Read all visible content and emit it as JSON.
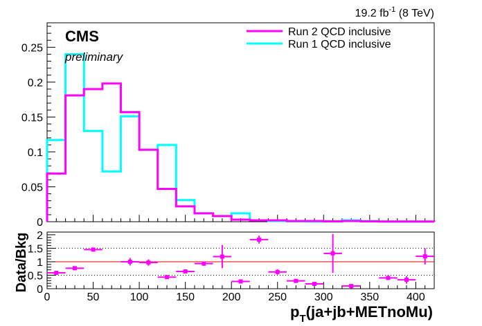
{
  "annotations": {
    "experiment": "CMS",
    "status": "preliminary",
    "lumi_value": "19.2 fb",
    "lumi_exp": "-1",
    "lumi_energy": " (8 TeV)"
  },
  "chart_data": [
    {
      "type": "line",
      "plot": "histogram",
      "xlim": [
        0,
        420
      ],
      "ylim": [
        0,
        0.285
      ],
      "bin_edges": [
        0,
        20,
        40,
        60,
        80,
        100,
        120,
        140,
        160,
        180,
        200,
        220,
        240,
        260,
        280,
        300,
        320,
        340,
        360,
        380,
        400,
        420
      ],
      "y_ticks": [
        "0",
        "0.05",
        "0.1",
        "0.15",
        "0.2",
        "0.25"
      ],
      "y_tick_values": [
        0,
        0.05,
        0.1,
        0.15,
        0.2,
        0.25
      ],
      "series": [
        {
          "name": "Run 2 QCD inclusive",
          "color": "#ff00ff",
          "values": [
            0.069,
            0.181,
            0.19,
            0.198,
            0.157,
            0.103,
            0.047,
            0.022,
            0.012,
            0.008,
            0.003,
            0.002,
            0.002,
            0.001,
            0.001,
            0.0005,
            0.001,
            0.0005,
            0.0003,
            0.0003,
            0.0002
          ]
        },
        {
          "name": "Run 1 QCD inclusive",
          "color": "#00ffff",
          "values": [
            0.117,
            0.24,
            0.13,
            0.072,
            0.151,
            0.103,
            0.11,
            0.031,
            0.012,
            0.008,
            0.012,
            0.002,
            0.001,
            0.0005,
            0.0003,
            0.0003,
            0.002,
            0.001,
            0.0003,
            0.0002,
            0.0001
          ]
        }
      ],
      "legend_position": "top-right",
      "grid": false
    },
    {
      "type": "scatter",
      "plot": "ratio with error bars",
      "ylabel": "Data/Bkg",
      "xlabel_main": "p",
      "xlabel_sub": "T",
      "xlabel_rest": "(ja+jb+METnoMu)",
      "xlim": [
        0,
        420
      ],
      "ylim": [
        0,
        2.1
      ],
      "x_ticks": [
        "0",
        "50",
        "100",
        "150",
        "200",
        "250",
        "300",
        "350",
        "400"
      ],
      "x_tick_values": [
        0,
        50,
        100,
        150,
        200,
        250,
        300,
        350,
        400
      ],
      "y_ticks": [
        "0",
        "0.5",
        "1",
        "1.5",
        "2"
      ],
      "y_tick_values": [
        0,
        0.5,
        1,
        1.5,
        2
      ],
      "reference_line": 1,
      "reference_color": "#dd0000",
      "dotted_lines": [
        0.5,
        1.5
      ],
      "marker_color": "#ff00ff",
      "points": [
        {
          "x": 10,
          "y": 0.59,
          "xerr": 10,
          "yerr": 0.04
        },
        {
          "x": 30,
          "y": 0.76,
          "xerr": 10,
          "yerr": 0.04
        },
        {
          "x": 50,
          "y": 1.45,
          "xerr": 10,
          "yerr": 0.05
        },
        {
          "x": 90,
          "y": 1.0,
          "xerr": 10,
          "yerr": 0.14
        },
        {
          "x": 110,
          "y": 0.97,
          "xerr": 10,
          "yerr": 0.12
        },
        {
          "x": 130,
          "y": 0.43,
          "xerr": 10,
          "yerr": 0.03
        },
        {
          "x": 150,
          "y": 0.64,
          "xerr": 10,
          "yerr": 0.06
        },
        {
          "x": 170,
          "y": 0.93,
          "xerr": 10,
          "yerr": 0.08
        },
        {
          "x": 190,
          "y": 1.19,
          "xerr": 10,
          "yerr": 0.43
        },
        {
          "x": 210,
          "y": 0.27,
          "xerr": 10,
          "yerr": 0.03
        },
        {
          "x": 230,
          "y": 1.82,
          "xerr": 10,
          "yerr": 0.15
        },
        {
          "x": 250,
          "y": 0.62,
          "xerr": 10,
          "yerr": 0.1
        },
        {
          "x": 270,
          "y": 0.29,
          "xerr": 10,
          "yerr": 0.05
        },
        {
          "x": 290,
          "y": 0.18,
          "xerr": 10,
          "yerr": 0.05
        },
        {
          "x": 310,
          "y": 1.31,
          "xerr": 10,
          "yerr": 0.72
        },
        {
          "x": 330,
          "y": 0.1,
          "xerr": 10,
          "yerr": 0.02
        },
        {
          "x": 370,
          "y": 0.4,
          "xerr": 10,
          "yerr": 0.08
        },
        {
          "x": 390,
          "y": 0.33,
          "xerr": 10,
          "yerr": 0.14
        },
        {
          "x": 410,
          "y": 1.2,
          "xerr": 10,
          "yerr": 0.3
        }
      ]
    }
  ]
}
